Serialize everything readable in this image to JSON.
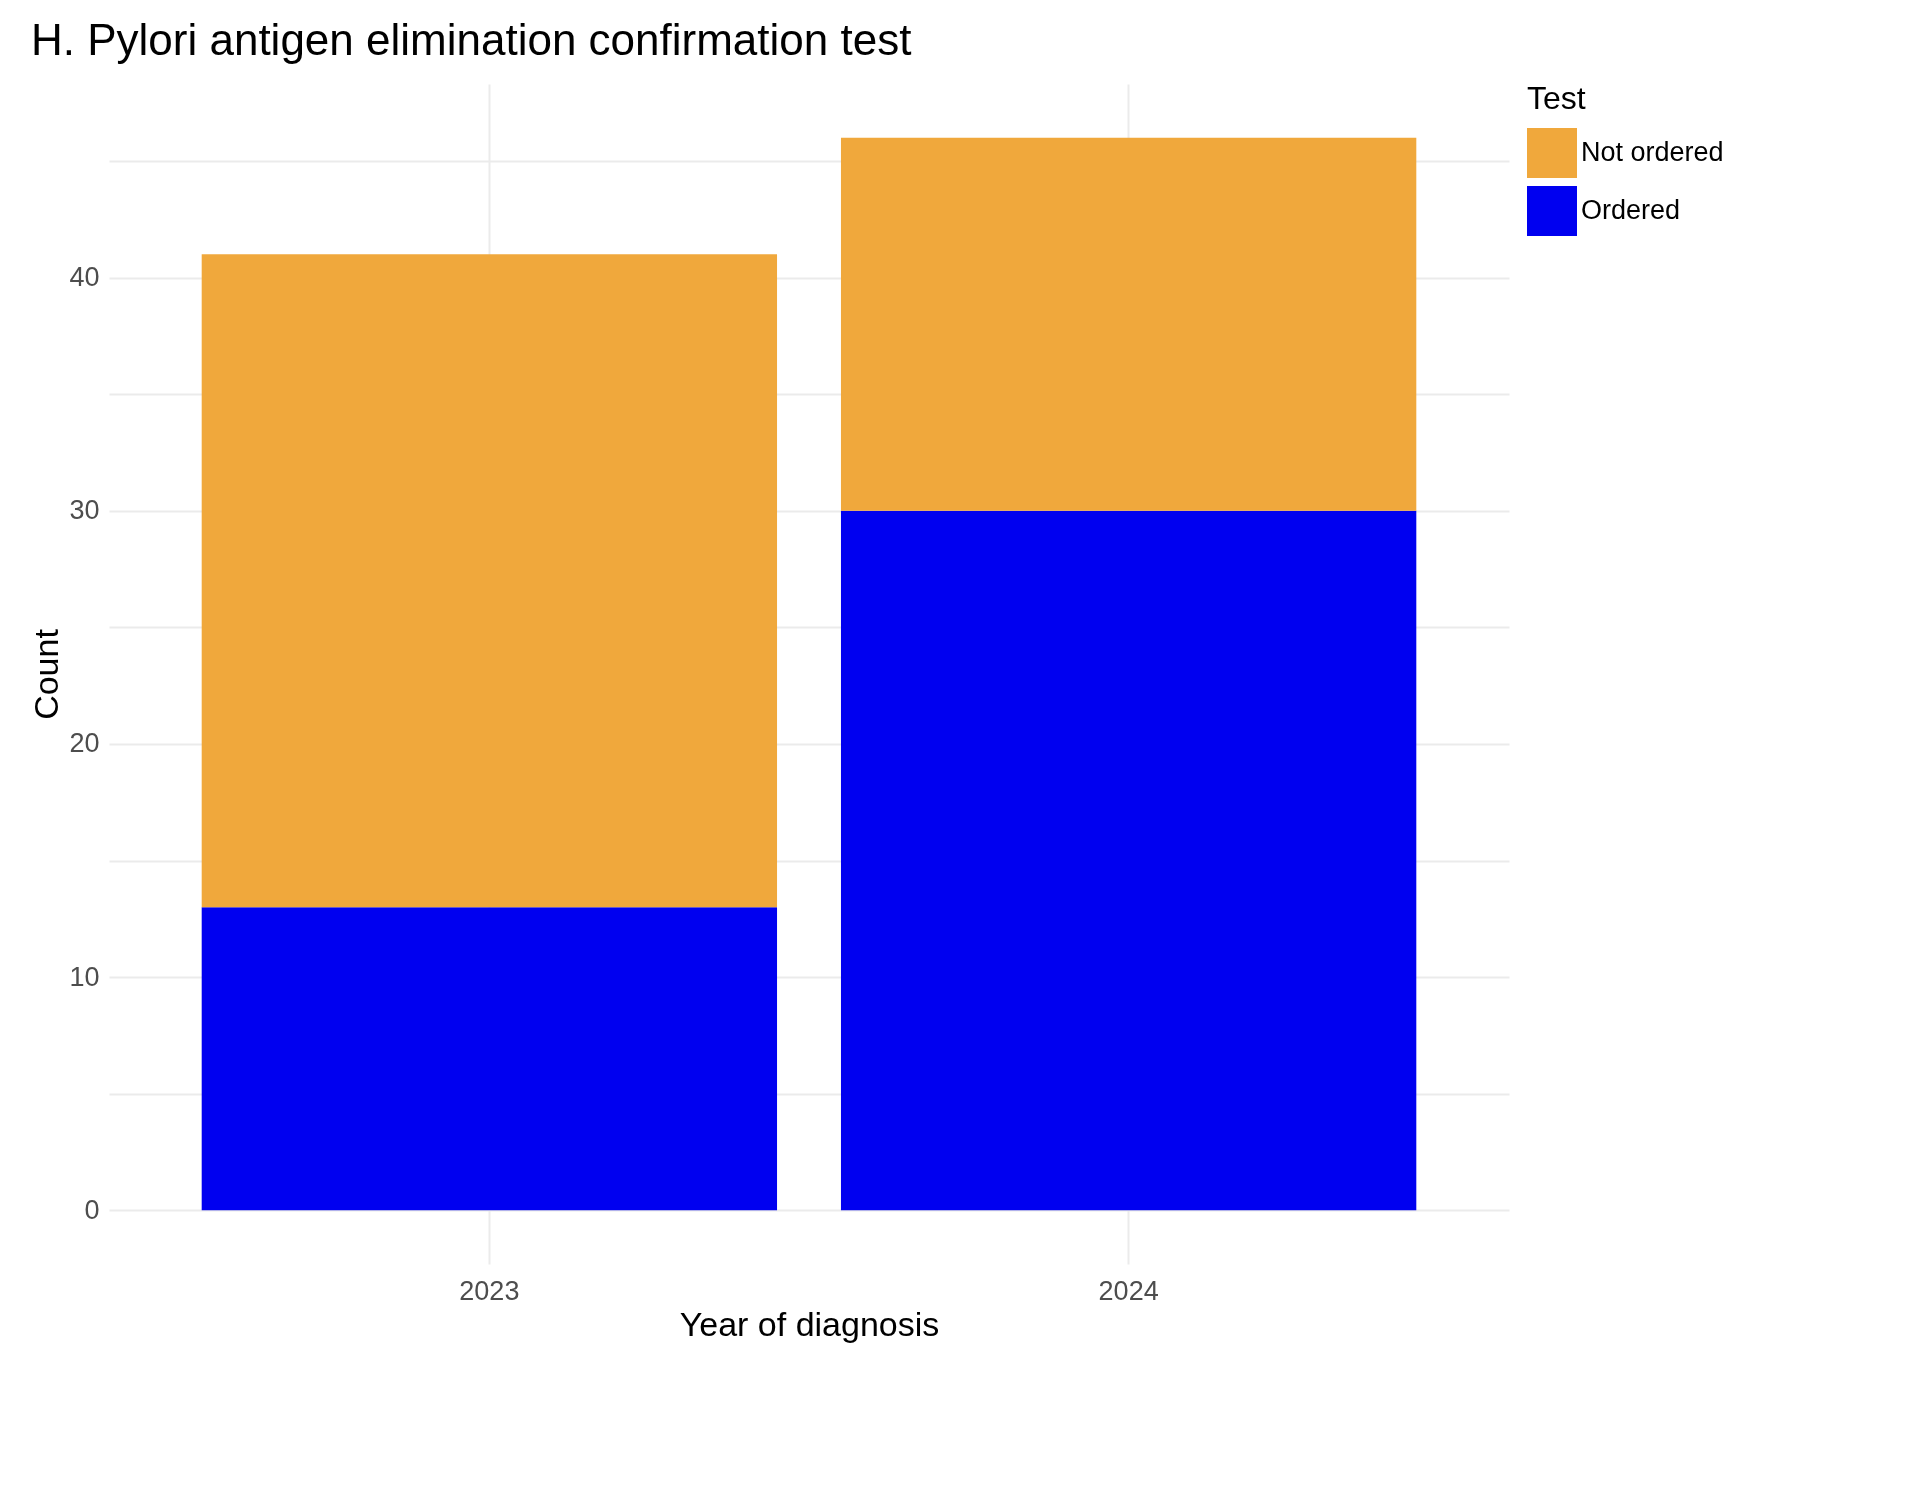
{
  "chart_data": {
    "type": "bar",
    "title": "H. Pylori antigen elimination confirmation test",
    "xlabel": "Year of diagnosis",
    "ylabel": "Count",
    "legend_title": "Test",
    "categories": [
      "2023",
      "2024"
    ],
    "series": [
      {
        "name": "Ordered",
        "color": "#0000f0",
        "values": [
          13,
          30
        ]
      },
      {
        "name": "Not ordered",
        "color": "#f0a83c",
        "values": [
          28,
          16
        ]
      }
    ],
    "stacked": true,
    "ylim": [
      -2.3,
      48.3
    ],
    "yticks": [
      0,
      {
        "value": 5,
        "label": null
      },
      10,
      {
        "value": 15,
        "label": null
      },
      20,
      {
        "value": 25,
        "label": null
      },
      30,
      {
        "value": 35,
        "label": null
      },
      40,
      {
        "value": 45,
        "label": null
      }
    ],
    "grid": true,
    "legend": "right"
  }
}
